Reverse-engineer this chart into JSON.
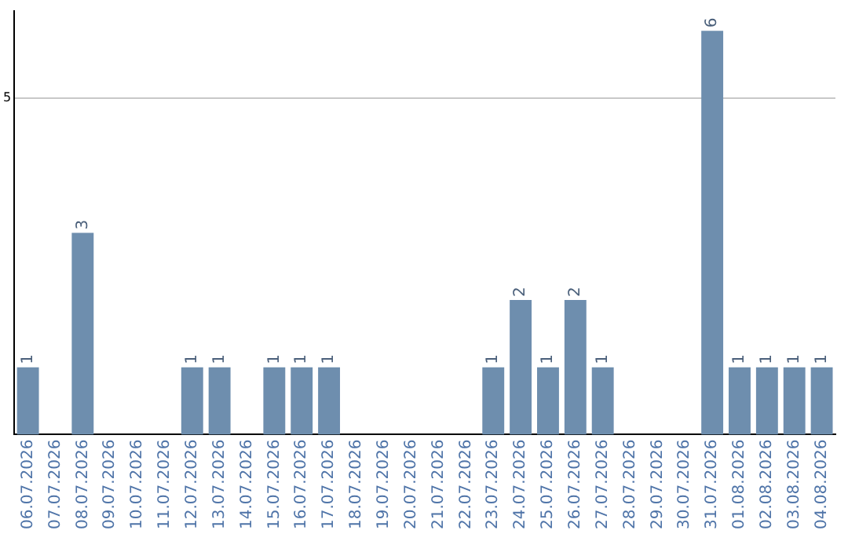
{
  "chart_data": {
    "type": "bar",
    "categories": [
      "06.07.2026",
      "07.07.2026",
      "08.07.2026",
      "09.07.2026",
      "10.07.2026",
      "11.07.2026",
      "12.07.2026",
      "13.07.2026",
      "14.07.2026",
      "15.07.2026",
      "16.07.2026",
      "17.07.2026",
      "18.07.2026",
      "19.07.2026",
      "20.07.2026",
      "21.07.2026",
      "22.07.2026",
      "23.07.2026",
      "24.07.2026",
      "25.07.2026",
      "26.07.2026",
      "27.07.2026",
      "28.07.2026",
      "29.07.2026",
      "30.07.2026",
      "31.07.2026",
      "01.08.2026",
      "02.08.2026",
      "03.08.2026",
      "04.08.2026"
    ],
    "values": [
      1,
      0,
      3,
      0,
      0,
      0,
      1,
      1,
      0,
      1,
      1,
      1,
      0,
      0,
      0,
      0,
      0,
      1,
      2,
      1,
      2,
      1,
      0,
      0,
      0,
      6,
      1,
      1,
      1,
      1
    ],
    "value_labels": [
      "1",
      null,
      "3",
      null,
      null,
      null,
      "1",
      "1",
      null,
      "1",
      "1",
      "1",
      null,
      null,
      null,
      null,
      null,
      "1",
      "2",
      "1",
      "2",
      "1",
      null,
      null,
      null,
      "6",
      "1",
      "1",
      "1",
      "1"
    ],
    "color": "#6e8eae",
    "ylim": [
      0,
      6.3
    ],
    "yticks": [
      5
    ],
    "grid": "y",
    "legend": false
  }
}
